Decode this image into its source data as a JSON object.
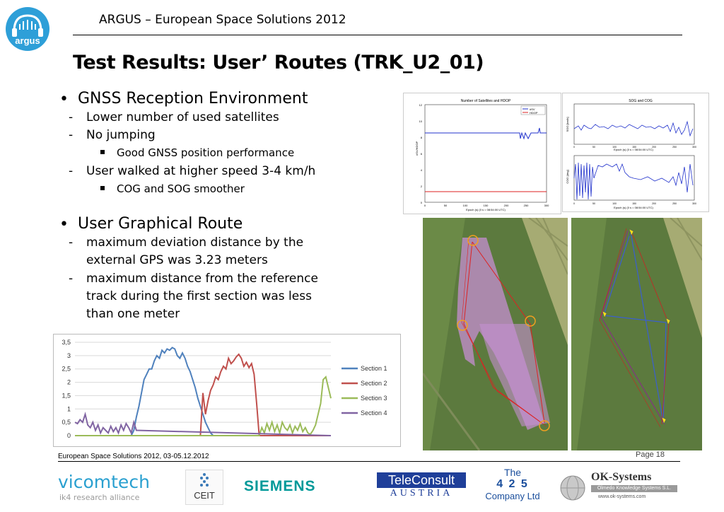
{
  "header": {
    "title": "ARGUS – European Space Solutions 2012",
    "logo_text": "argus"
  },
  "slide": {
    "title": "Test Results: User’ Routes (TRK_U2_01)"
  },
  "bullets": {
    "b1": "GNSS Reception Environment",
    "b1_1": "Lower number of used satellites",
    "b1_2": "No jumping",
    "b1_2_1": "Good GNSS position performance",
    "b1_3": "User walked at higher speed 3-4 km/h",
    "b1_3_1": "COG and SOG smoother",
    "b2": "User Graphical Route",
    "b2_1_a": "maximum deviation distance by the",
    "b2_1_b": "external GPS was 3.23 meters",
    "b2_2_a": "maximum distance from the reference",
    "b2_2_b": "track during the first section was less",
    "b2_2_c": "than one meter",
    "bullet_glyph": "•",
    "dash_glyph": "-"
  },
  "chart_data": {
    "type": "line",
    "yticks": [
      "0",
      "0,5",
      "1",
      "1,5",
      "2",
      "2,5",
      "3",
      "3,5"
    ],
    "ylim": [
      0,
      3.5
    ],
    "xlim": [
      0,
      100
    ],
    "legend_position": "right",
    "series": [
      {
        "name": "Section 1",
        "color": "#4f81bd",
        "x": [
          0,
          22,
          23,
          24,
          25,
          26,
          27,
          28,
          29,
          30,
          31,
          32,
          33,
          34,
          35,
          36,
          37,
          38,
          39,
          40,
          41,
          42,
          43,
          44,
          45,
          46,
          47,
          48,
          49,
          50,
          51,
          52,
          53,
          54,
          55,
          56,
          57,
          100
        ],
        "y": [
          0,
          0,
          0.2,
          0.7,
          1.1,
          1.6,
          2.1,
          2.3,
          2.5,
          2.5,
          2.8,
          3.0,
          2.9,
          3.2,
          3.1,
          3.25,
          3.2,
          3.3,
          3.25,
          3.0,
          2.9,
          3.1,
          2.9,
          2.6,
          2.4,
          2.1,
          1.8,
          1.4,
          1.1,
          0.8,
          0.5,
          0.3,
          0.1,
          0,
          0,
          0,
          0,
          0
        ]
      },
      {
        "name": "Section 2",
        "color": "#c0504d",
        "x": [
          0,
          49,
          50,
          51,
          52,
          53,
          54,
          55,
          56,
          57,
          58,
          59,
          60,
          61,
          62,
          63,
          64,
          65,
          66,
          67,
          68,
          69,
          70,
          71,
          72,
          100
        ],
        "y": [
          0,
          0,
          1.6,
          0.8,
          1.3,
          1.7,
          1.9,
          2.2,
          2.1,
          2.4,
          2.6,
          2.5,
          2.9,
          2.7,
          2.8,
          2.95,
          3.05,
          2.9,
          2.6,
          2.75,
          2.55,
          2.7,
          2.3,
          1.2,
          0,
          0
        ]
      },
      {
        "name": "Section 3",
        "color": "#9bbb59",
        "x": [
          0,
          72,
          73,
          74,
          75,
          76,
          77,
          78,
          79,
          80,
          81,
          82,
          83,
          84,
          85,
          86,
          87,
          88,
          89,
          90,
          91,
          92,
          93,
          94,
          95,
          96,
          97,
          98,
          99,
          100
        ],
        "y": [
          0,
          0,
          0.3,
          0.1,
          0.45,
          0.2,
          0.5,
          0.15,
          0.4,
          0.1,
          0.5,
          0.3,
          0.2,
          0.4,
          0.1,
          0.35,
          0.2,
          0.45,
          0.15,
          0.3,
          0.1,
          0.05,
          0.2,
          0.4,
          0.8,
          1.2,
          2.1,
          2.2,
          1.8,
          1.4
        ]
      },
      {
        "name": "Section 4",
        "color": "#8064a2",
        "x": [
          0,
          1,
          2,
          3,
          4,
          5,
          6,
          7,
          8,
          9,
          10,
          11,
          12,
          13,
          14,
          15,
          16,
          17,
          18,
          19,
          20,
          21,
          22,
          23,
          24,
          100
        ],
        "y": [
          0.5,
          0.45,
          0.6,
          0.5,
          0.8,
          0.4,
          0.3,
          0.5,
          0.2,
          0.4,
          0.1,
          0.3,
          0.2,
          0.1,
          0.35,
          0.15,
          0.3,
          0.1,
          0.4,
          0.2,
          0.45,
          0.3,
          0.1,
          0.5,
          0.2,
          0
        ]
      }
    ]
  },
  "small_charts": {
    "left_title": "Number of Satellites and HDOP",
    "left_ylabel": "#SV/HDOP",
    "left_xlabel": "Epoch (s) (0 s = 08:54:00 UTC)",
    "left_legend": [
      "#SV",
      "HDOP"
    ],
    "left_yticks": [
      "0",
      "2",
      "4",
      "6",
      "8",
      "10",
      "12"
    ],
    "left_xticks": [
      "0",
      "50",
      "100",
      "150",
      "200",
      "250",
      "300"
    ],
    "right_title": "SOG and COG",
    "right_top_ylabel": "SOG [km/h]",
    "right_bottom_ylabel": "COG [deg]",
    "right_xlabel": "Epoch (s) (0 s = 08:54:00 UTC)",
    "right_xticks": [
      "0",
      "50",
      "100",
      "150",
      "200",
      "250",
      "300"
    ]
  },
  "footer": {
    "text": "European Space Solutions 2012, 03-05.12.2012",
    "page": "Page 18"
  },
  "sponsors": {
    "vicomtech": "vicomtech",
    "vicomtech_sub": "ik4 research alliance",
    "ceit": "CEIT",
    "siemens": "SIEMENS",
    "teleconsult_a": "TeleConsult",
    "teleconsult_b": "AUSTRIA",
    "c425_a": "The",
    "c425_b": "4 2 5",
    "c425_c": "Company Ltd",
    "ok_a": "OK-Systems",
    "ok_b": "Olmedo Knowledge Systems S.L.",
    "ok_c": "www.ok-systems.com"
  },
  "colors": {
    "argus_blue": "#2e9fd8",
    "siemens_teal": "#009999",
    "teleconsult_blue": "#1f3f99",
    "c425_blue": "#1a4e9c",
    "map_green": "#5c7a3e"
  }
}
